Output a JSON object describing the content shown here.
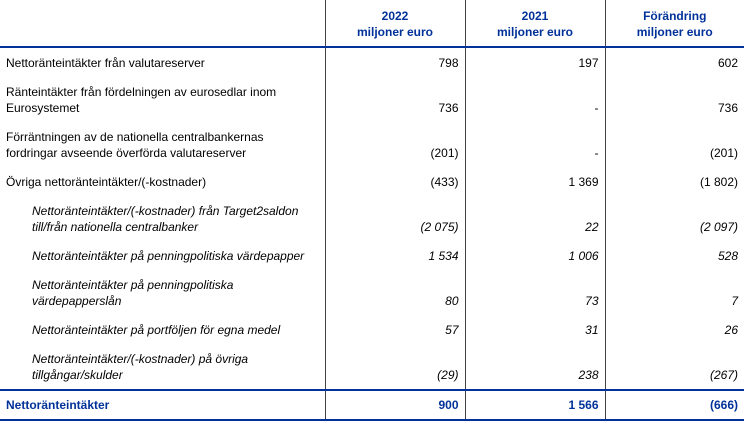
{
  "header": {
    "label": "",
    "columns": [
      {
        "title": "2022",
        "unit": "miljoner euro"
      },
      {
        "title": "2021",
        "unit": "miljoner euro"
      },
      {
        "title": "Förändring",
        "unit": "miljoner euro"
      }
    ]
  },
  "table": {
    "rows": [
      {
        "label": "Nettoränteintäkter från valutareserver",
        "values": [
          "798",
          "197",
          "602"
        ]
      },
      {
        "label": "Ränteintäkter från fördelningen av eurosedlar inom\nEurosystemet",
        "values": [
          "736",
          "-",
          "736"
        ]
      },
      {
        "label": "Förräntningen av de nationella centralbankernas\nfordringar avseende överförda valutareserver",
        "values": [
          "(201)",
          "-",
          "(201)"
        ]
      },
      {
        "label": "Övriga nettoränteintäkter/(-kostnader)",
        "values": [
          "(433)",
          "1 369",
          "(1 802)"
        ],
        "items": [
          {
            "label": "Nettoränteintäkter/(-kostnader) från Target2saldon\ntill/från nationella centralbanker",
            "values": [
              "(2 075)",
              "22",
              "(2 097)"
            ]
          },
          {
            "label": "Nettoränteintäkter på penningpolitiska värdepapper",
            "values": [
              "1 534",
              "1 006",
              "528"
            ]
          },
          {
            "label": "Nettoränteintäkter på penningpolitiska\nvärdepapperslån",
            "values": [
              "80",
              "73",
              "7"
            ]
          },
          {
            "label": "Nettoränteintäkter på portföljen för egna medel",
            "values": [
              "57",
              "31",
              "26"
            ]
          },
          {
            "label": "Nettoränteintäkter/(-kostnader) på övriga\ntillgångar/skulder",
            "values": [
              "(29)",
              "238",
              "(267)"
            ]
          }
        ]
      }
    ],
    "total": {
      "label": "Nettoränteintäkter",
      "values": [
        "900",
        "1 566",
        "(666)"
      ]
    }
  }
}
